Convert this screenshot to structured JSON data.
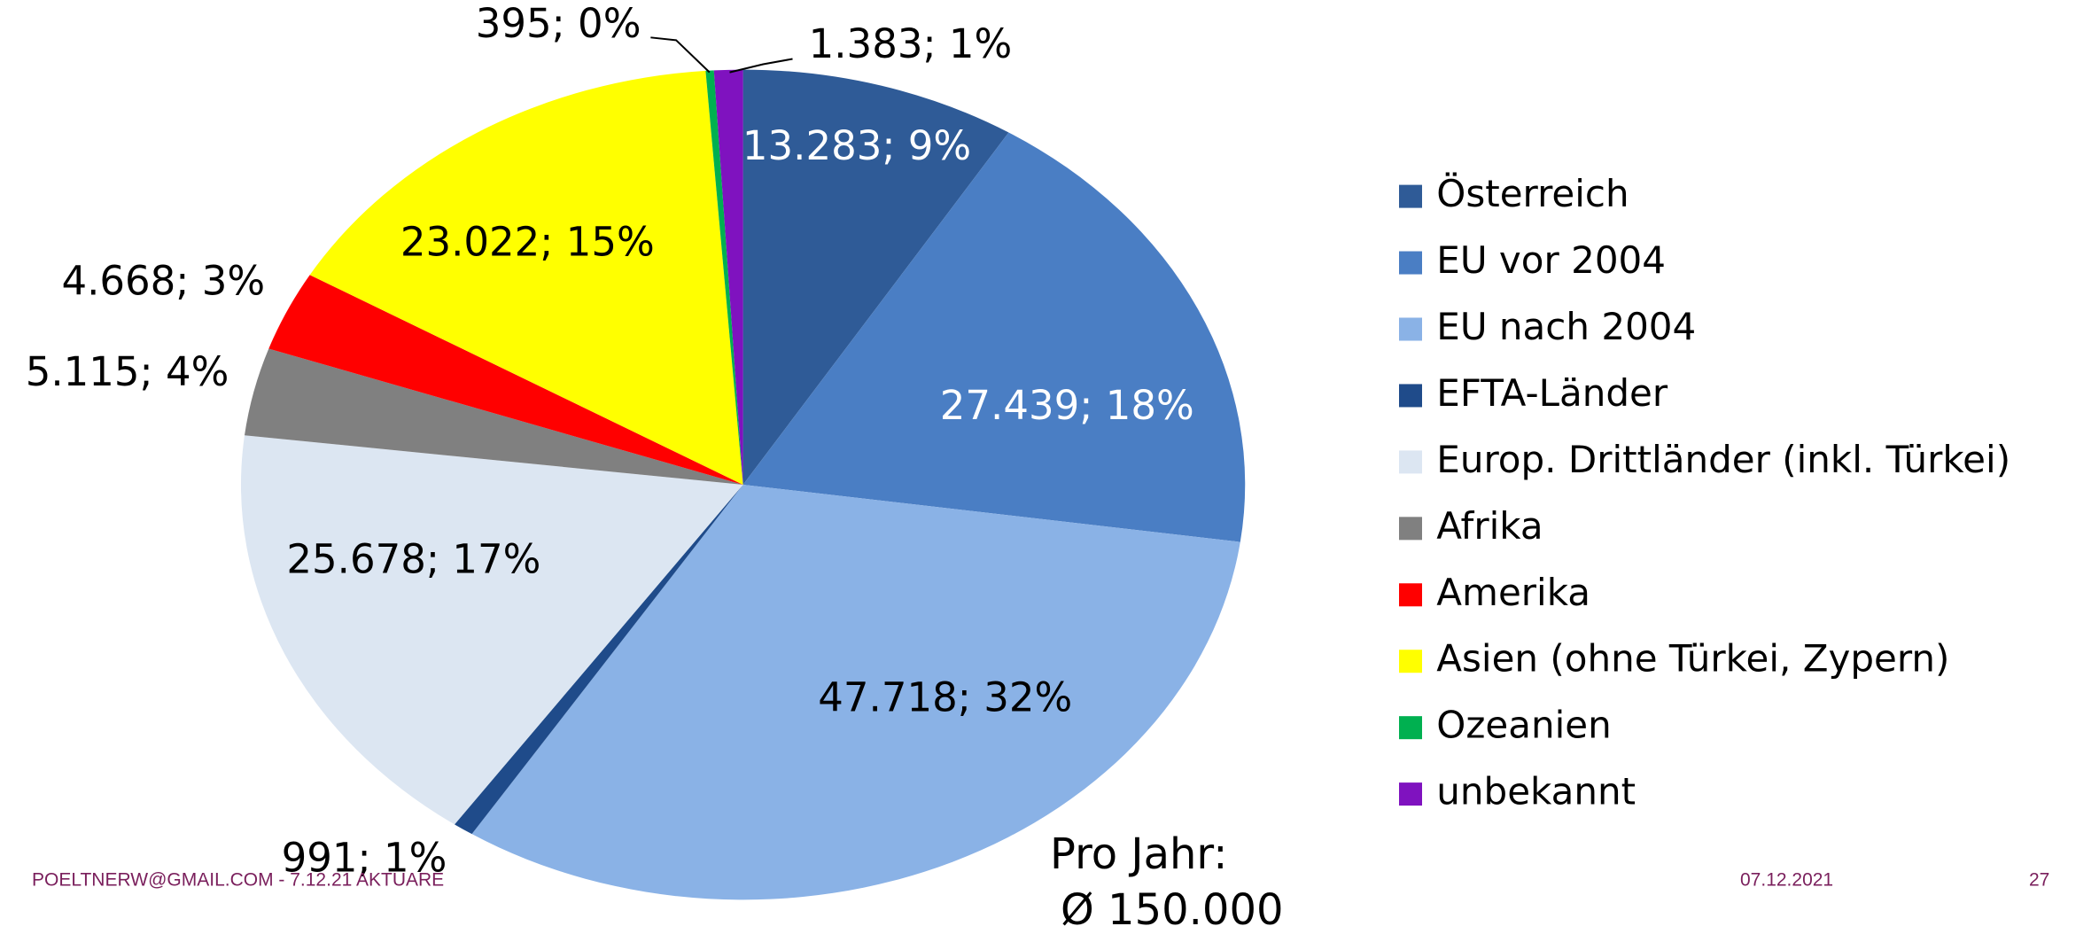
{
  "chart_data": {
    "type": "pie",
    "categories": [
      "Österreich",
      "EU vor 2004",
      "EU nach 2004",
      "EFTA-Länder",
      "Europ. Drittländer (inkl. Türkei)",
      "Afrika",
      "Amerika",
      "Asien (ohne Türkei, Zypern)",
      "Ozeanien",
      "unbekannt"
    ],
    "values": [
      13283,
      27439,
      47718,
      991,
      25678,
      5115,
      4668,
      23022,
      395,
      1383
    ],
    "value_labels": [
      "13.283; 9%",
      "27.439; 18%",
      "47.718; 32%",
      "991; 1%",
      "25.678; 17%",
      "5.115; 4%",
      "4.668; 3%",
      "23.022; 15%",
      "395; 0%",
      "1.383; 1%"
    ],
    "colors": [
      "#2f5b97",
      "#4a7ec4",
      "#8ab2e6",
      "#1f4b8a",
      "#dce6f2",
      "#808080",
      "#ff0000",
      "#ffff00",
      "#00b050",
      "#7f12bf"
    ],
    "legend": "right",
    "annotations": [
      "Pro Jahr:",
      "Ø 150.000"
    ]
  },
  "footer": {
    "left": "POELTNERW@GMAIL.COM - 7.12.21 AKTUARE",
    "date": "07.12.2021",
    "page": "27"
  }
}
